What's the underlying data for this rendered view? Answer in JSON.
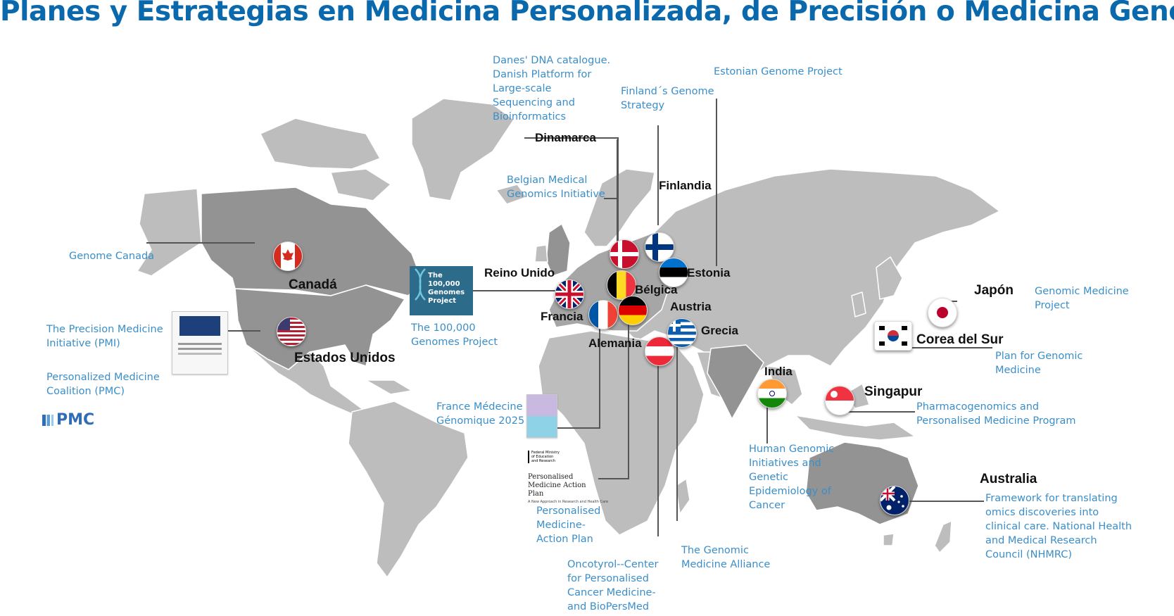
{
  "title": "Planes y Estrategias en Medicina Personalizada, de Precisión o Medicina Genómica",
  "colors": {
    "title": "#0a68ad",
    "label": "#3b8ec8",
    "land": "#bdbdbd",
    "highlight": "#8f8f8f"
  },
  "countries": {
    "canada": "Canadá",
    "usa": "Estados Unidos",
    "uk": "Reino Unido",
    "denmark": "Dinamarca",
    "finland": "Finlandia",
    "estonia": "Estonia",
    "belgium": "Bélgica",
    "austria": "Austria",
    "france": "Francia",
    "greece": "Grecia",
    "germany": "Alemania",
    "japan": "Japón",
    "korea": "Corea del Sur",
    "india": "India",
    "singapore": "Singapur",
    "australia": "Australia"
  },
  "initiatives": {
    "genome_canada": "Genome Canada",
    "pmi": "The Precision Medicine Initiative (PMI)",
    "pmc": "Personalized Medicine Coalition (PMC)",
    "uk_100k": "The 100,000 Genomes Project",
    "danish": "Danes' DNA catalogue. Danish Platform for Large-scale Sequencing and Bioinformatics",
    "belgian": "Belgian Medical Genomics Initiative",
    "finland": "Finland´s Genome Strategy",
    "estonia": "Estonian Genome Project",
    "france": "France Médecine Génomique 2025",
    "germany": "Personalised Medicine- Action Plan",
    "austria": "Oncotyrol--Center for Personalised Cancer Medicine- and BioPersMed",
    "greece": "The Genomic Medicine Alliance",
    "india": "Human Genomic Initiatives and Genetic Epidemiology of Cancer",
    "singapore": "Pharmacogenomics and Personalised Medicine Program",
    "japan": "Genomic Medicine Project",
    "korea": "Plan for Genomic Medicine",
    "australia": "Framework for translating omics discoveries into clinical care. National Health and Medical Research Council (NHMRC)"
  },
  "logos": {
    "pmc": "PMC",
    "genomes_badge": "The 100,000 Genomes Project",
    "de_plan_title": "Personalised Medicine Action Plan",
    "de_plan_sub": "A New Approach in Research and Health Care",
    "de_ministry": "Federal Ministry of Education and Research"
  },
  "icons": {
    "dna": "dna-helix-icon",
    "flag": "country-flag-icon"
  }
}
